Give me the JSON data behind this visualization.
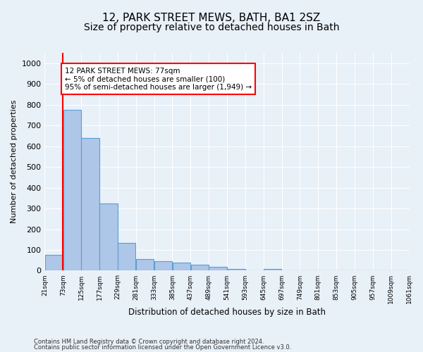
{
  "title": "12, PARK STREET MEWS, BATH, BA1 2SZ",
  "subtitle": "Size of property relative to detached houses in Bath",
  "xlabel": "Distribution of detached houses by size in Bath",
  "ylabel": "Number of detached properties",
  "footnote1": "Contains HM Land Registry data © Crown copyright and database right 2024.",
  "footnote2": "Contains public sector information licensed under the Open Government Licence v3.0.",
  "bar_edges": [
    21,
    73,
    125,
    177,
    229,
    281,
    333,
    385,
    437,
    489,
    541,
    593,
    645,
    697,
    749,
    801,
    853,
    905,
    957,
    1009,
    1061
  ],
  "bar_heights": [
    75,
    775,
    640,
    325,
    135,
    55,
    45,
    40,
    30,
    17,
    10,
    0,
    10,
    0,
    0,
    0,
    0,
    0,
    0,
    0
  ],
  "bar_color": "#aec6e8",
  "bar_edge_color": "#5a9fd4",
  "vline_x": 73,
  "annotation_text": "12 PARK STREET MEWS: 77sqm\n← 5% of detached houses are smaller (100)\n95% of semi-detached houses are larger (1,949) →",
  "annotation_box_color": "white",
  "annotation_box_edge_color": "red",
  "vline_color": "red",
  "ylim": [
    0,
    1050
  ],
  "yticks": [
    0,
    100,
    200,
    300,
    400,
    500,
    600,
    700,
    800,
    900,
    1000
  ],
  "tick_labels": [
    "21sqm",
    "73sqm",
    "125sqm",
    "177sqm",
    "229sqm",
    "281sqm",
    "333sqm",
    "385sqm",
    "437sqm",
    "489sqm",
    "541sqm",
    "593sqm",
    "645sqm",
    "697sqm",
    "749sqm",
    "801sqm",
    "853sqm",
    "905sqm",
    "957sqm",
    "1009sqm",
    "1061sqm"
  ],
  "bg_color": "#e8f0f8",
  "plot_bg_color": "#e8f0f8",
  "grid_color": "white",
  "title_fontsize": 11,
  "subtitle_fontsize": 10
}
